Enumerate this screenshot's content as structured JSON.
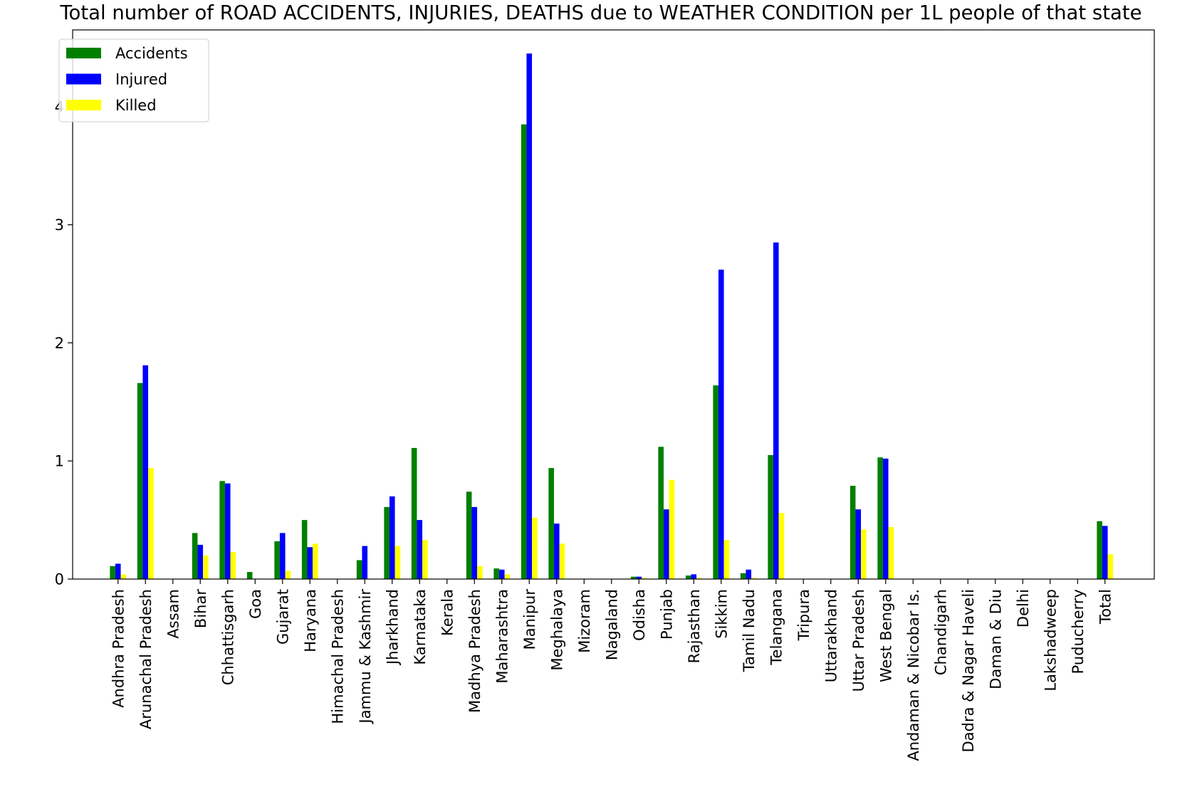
{
  "chart_data": {
    "type": "bar",
    "title": "Total number of ROAD ACCIDENTS, INJURIES, DEATHS due to WEATHER CONDITION per 1L people of that state",
    "xlabel": "",
    "ylabel": "",
    "ylim": [
      0,
      4.65
    ],
    "yticks": [
      0,
      1,
      2,
      3,
      4
    ],
    "grid": false,
    "legend_position": "top-left",
    "categories": [
      "Andhra Pradesh",
      "Arunachal Pradesh",
      "Assam",
      "Bihar",
      "Chhattisgarh",
      "Goa",
      "Gujarat",
      "Haryana",
      "Himachal Pradesh",
      "Jammu & Kashmir",
      "Jharkhand",
      "Karnataka",
      "Kerala",
      "Madhya Pradesh",
      "Maharashtra",
      "Manipur",
      "Meghalaya",
      "Mizoram",
      "Nagaland",
      "Odisha",
      "Punjab",
      "Rajasthan",
      "Sikkim",
      "Tamil Nadu",
      "Telangana",
      "Tripura",
      "Uttarakhand",
      "Uttar Pradesh",
      "West Bengal",
      "Andaman & Nicobar Is.",
      "Chandigarh",
      "Dadra & Nagar Haveli",
      "Daman & Diu",
      "Delhi",
      "Lakshadweep",
      "Puducherry",
      "Total"
    ],
    "series": [
      {
        "name": "Accidents",
        "color": "#008000",
        "values": [
          0.11,
          1.66,
          0,
          0.39,
          0.83,
          0.06,
          0.32,
          0.5,
          0,
          0.16,
          0.61,
          1.11,
          0,
          0.74,
          0.09,
          3.85,
          0.94,
          0,
          0,
          0.02,
          1.12,
          0.03,
          1.64,
          0.05,
          1.05,
          0,
          0,
          0.79,
          1.03,
          0,
          0,
          0,
          0,
          0,
          0,
          0,
          0.49
        ]
      },
      {
        "name": "Injured",
        "color": "#0000ff",
        "values": [
          0.13,
          1.81,
          0,
          0.29,
          0.81,
          0,
          0.39,
          0.27,
          0,
          0.28,
          0.7,
          0.5,
          0,
          0.61,
          0.08,
          4.45,
          0.47,
          0,
          0,
          0.02,
          0.59,
          0.04,
          2.62,
          0.08,
          2.85,
          0,
          0,
          0.59,
          1.02,
          0,
          0,
          0,
          0,
          0,
          0,
          0,
          0.45
        ]
      },
      {
        "name": "Killed",
        "color": "#ffff00",
        "values": [
          0.04,
          0.94,
          0,
          0.2,
          0.23,
          0,
          0.07,
          0.3,
          0,
          0,
          0.28,
          0.33,
          0,
          0.11,
          0.04,
          0.52,
          0.3,
          0,
          0,
          0.01,
          0.84,
          0.01,
          0.33,
          0.01,
          0.56,
          0,
          0,
          0.42,
          0.44,
          0,
          0,
          0,
          0,
          0,
          0,
          0,
          0.21
        ]
      }
    ]
  }
}
